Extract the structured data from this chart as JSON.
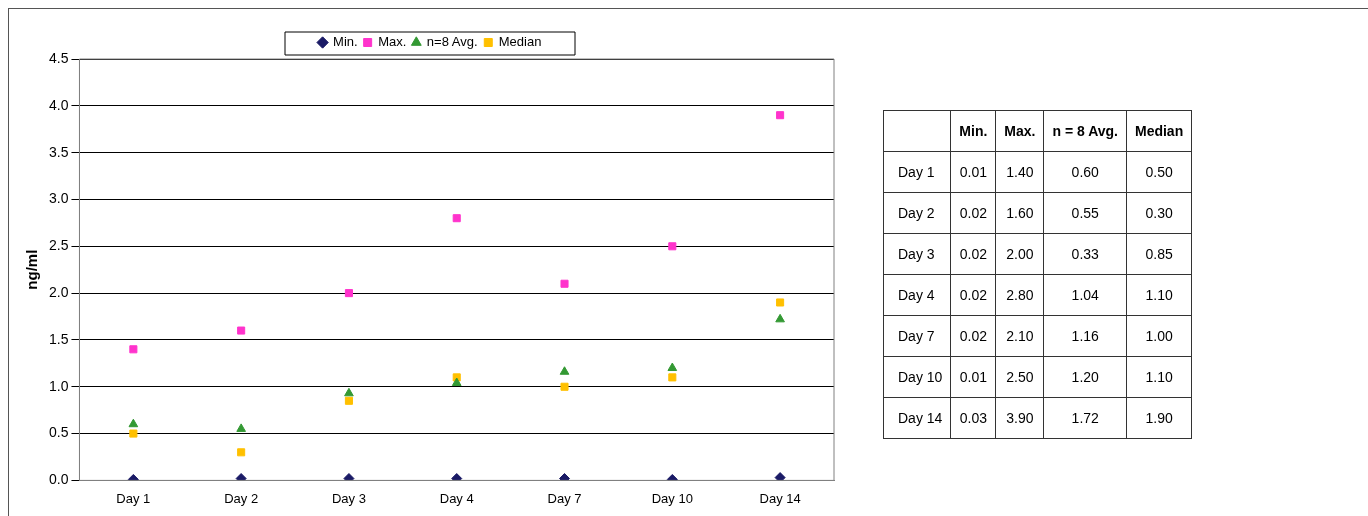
{
  "chart_data": [
    {
      "type": "scatter",
      "ylabel": "ng/ml",
      "categories": [
        "Day 1",
        "Day 2",
        "Day 3",
        "Day 4",
        "Day 7",
        "Day 10",
        "Day 14"
      ],
      "series": [
        {
          "name": "Min.",
          "color": "#1a1a66",
          "marker": "diamond",
          "values": [
            0.01,
            0.02,
            0.02,
            0.02,
            0.02,
            0.01,
            0.03
          ]
        },
        {
          "name": "Max.",
          "color": "#ff33cc",
          "marker": "square",
          "values": [
            1.4,
            1.6,
            2.0,
            2.8,
            2.1,
            2.5,
            3.9
          ]
        },
        {
          "name": "n=8 Avg.",
          "color": "#339933",
          "marker": "triangle",
          "values": [
            0.6,
            0.55,
            0.93,
            1.04,
            1.16,
            1.2,
            1.72
          ]
        },
        {
          "name": "Median",
          "color": "#ffc000",
          "marker": "square",
          "values": [
            0.5,
            0.3,
            0.85,
            1.1,
            1.0,
            1.1,
            1.9
          ]
        }
      ],
      "ylim": [
        0,
        4.5
      ],
      "yticks": [
        {
          "value": 0,
          "label": "0.0"
        },
        {
          "value": 0.5,
          "label": "0.5"
        },
        {
          "value": 1,
          "label": "1.0"
        },
        {
          "value": 1.5,
          "label": "1.5"
        },
        {
          "value": 2,
          "label": "2.0"
        },
        {
          "value": 2.5,
          "label": "2.5"
        },
        {
          "value": 3,
          "label": "3.0"
        },
        {
          "value": 3.5,
          "label": "3.5"
        },
        {
          "value": 4,
          "label": "4.0"
        },
        {
          "value": 4.5,
          "label": "4.5"
        }
      ],
      "grid": "y",
      "legend": "top"
    },
    {
      "type": "other",
      "categories": [
        "Min.",
        "Max.",
        "n = 8 Avg.",
        "Median"
      ],
      "y_categories": [
        "Day 1",
        "Day 2",
        "Day 3",
        "Day 4",
        "Day 7",
        "Day 10",
        "Day 14"
      ],
      "cell_labels": [
        [
          "0.01",
          "1.40",
          "0.60",
          "0.50"
        ],
        [
          "0.02",
          "1.60",
          "0.55",
          "0.30"
        ],
        [
          "0.02",
          "2.00",
          "0.33",
          "0.85"
        ],
        [
          "0.02",
          "2.80",
          "1.04",
          "1.10"
        ],
        [
          "0.02",
          "2.10",
          "1.16",
          "1.00"
        ],
        [
          "0.01",
          "2.50",
          "1.20",
          "1.10"
        ],
        [
          "0.03",
          "3.90",
          "1.72",
          "1.90"
        ]
      ]
    }
  ]
}
